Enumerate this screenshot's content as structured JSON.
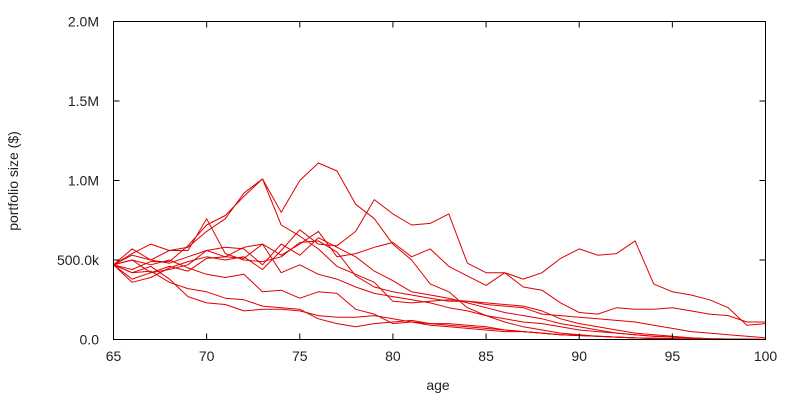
{
  "chart_data": {
    "type": "line",
    "title": "",
    "xlabel": "age",
    "ylabel": "portfolio size ($)",
    "xlim": [
      65,
      100
    ],
    "ylim": [
      0,
      2000000
    ],
    "x_ticks": [
      65,
      70,
      75,
      80,
      85,
      90,
      95,
      100
    ],
    "x_tick_labels": [
      "65",
      "70",
      "75",
      "80",
      "85",
      "90",
      "95",
      "100"
    ],
    "y_ticks": [
      0,
      500000,
      1000000,
      1500000,
      2000000
    ],
    "y_tick_labels": [
      "0.0",
      "500.0k",
      "1.0M",
      "1.5M",
      "2.0M"
    ],
    "grid": false,
    "legend": "none",
    "line_color": "#e00000",
    "x": [
      65,
      66,
      67,
      68,
      69,
      70,
      71,
      72,
      73,
      74,
      75,
      76,
      77,
      78,
      79,
      80,
      81,
      82,
      83,
      84,
      85,
      86,
      87,
      88,
      89,
      90,
      91,
      92,
      93,
      94,
      95,
      96,
      97,
      98,
      99,
      100
    ],
    "series": [
      {
        "values": [
          470000,
          530000,
          500000,
          480000,
          520000,
          560000,
          520000,
          580000,
          600000,
          530000,
          600000,
          680000,
          520000,
          540000,
          580000,
          610000,
          520000,
          570000,
          460000,
          400000,
          340000,
          420000,
          330000,
          310000,
          230000,
          170000,
          160000,
          200000,
          190000,
          190000,
          200000,
          180000,
          160000,
          150000,
          110000,
          110000
        ]
      },
      {
        "values": [
          470000,
          360000,
          390000,
          450000,
          490000,
          520000,
          500000,
          520000,
          440000,
          560000,
          690000,
          600000,
          590000,
          680000,
          880000,
          790000,
          720000,
          730000,
          790000,
          480000,
          420000,
          420000,
          380000,
          420000,
          510000,
          570000,
          530000,
          540000,
          620000,
          350000,
          300000,
          280000,
          250000,
          200000,
          90000,
          100000
        ]
      },
      {
        "values": [
          470000,
          500000,
          420000,
          440000,
          470000,
          560000,
          580000,
          570000,
          470000,
          600000,
          530000,
          640000,
          580000,
          520000,
          430000,
          370000,
          300000,
          280000,
          260000,
          230000,
          200000,
          170000,
          150000,
          130000,
          100000,
          80000,
          60000,
          40000,
          30000,
          20000,
          15000,
          10000,
          5000,
          3000,
          1000,
          0
        ]
      },
      {
        "values": [
          470000,
          570000,
          500000,
          560000,
          560000,
          760000,
          540000,
          500000,
          490000,
          520000,
          610000,
          620000,
          550000,
          400000,
          330000,
          300000,
          280000,
          260000,
          240000,
          240000,
          220000,
          210000,
          200000,
          160000,
          150000,
          140000,
          130000,
          120000,
          110000,
          90000,
          70000,
          50000,
          40000,
          30000,
          20000,
          10000
        ]
      },
      {
        "values": [
          470000,
          540000,
          600000,
          560000,
          580000,
          680000,
          760000,
          920000,
          1010000,
          800000,
          1000000,
          1110000,
          1060000,
          850000,
          760000,
          600000,
          500000,
          350000,
          300000,
          200000,
          150000,
          110000,
          80000,
          60000,
          40000,
          30000,
          20000,
          15000,
          10000,
          5000,
          3000,
          2000,
          1000,
          0,
          0,
          0
        ]
      },
      {
        "values": [
          470000,
          440000,
          490000,
          490000,
          590000,
          720000,
          780000,
          900000,
          1010000,
          720000,
          650000,
          570000,
          460000,
          410000,
          360000,
          240000,
          230000,
          240000,
          250000,
          240000,
          230000,
          220000,
          210000,
          180000,
          130000,
          100000,
          80000,
          60000,
          40000,
          30000,
          20000,
          10000,
          5000,
          3000,
          1000,
          0
        ]
      },
      {
        "values": [
          470000,
          380000,
          420000,
          460000,
          430000,
          510000,
          520000,
          510000,
          600000,
          420000,
          470000,
          410000,
          380000,
          330000,
          290000,
          270000,
          250000,
          230000,
          200000,
          180000,
          150000,
          130000,
          110000,
          100000,
          80000,
          60000,
          50000,
          40000,
          30000,
          20000,
          15000,
          10000,
          5000,
          3000,
          2000,
          1000
        ]
      },
      {
        "values": [
          470000,
          420000,
          460000,
          380000,
          270000,
          230000,
          220000,
          180000,
          190000,
          190000,
          180000,
          150000,
          140000,
          140000,
          150000,
          130000,
          110000,
          100000,
          90000,
          80000,
          70000,
          60000,
          50000,
          40000,
          30000,
          25000,
          20000,
          15000,
          10000,
          8000,
          5000,
          3000,
          2000,
          1000,
          500,
          0
        ]
      },
      {
        "values": [
          470000,
          420000,
          430000,
          360000,
          320000,
          300000,
          260000,
          250000,
          210000,
          200000,
          190000,
          130000,
          100000,
          80000,
          100000,
          110000,
          120000,
          100000,
          100000,
          90000,
          80000,
          60000,
          50000,
          40000,
          30000,
          25000,
          20000,
          15000,
          10000,
          8000,
          5000,
          3000,
          2000,
          1000,
          500,
          0
        ]
      },
      {
        "values": [
          470000,
          500000,
          470000,
          500000,
          450000,
          410000,
          390000,
          410000,
          300000,
          310000,
          260000,
          300000,
          290000,
          190000,
          160000,
          100000,
          110000,
          90000,
          80000,
          70000,
          60000,
          50000,
          50000,
          40000,
          30000,
          25000,
          20000,
          15000,
          10000,
          8000,
          5000,
          3000,
          2000,
          1000,
          500,
          0
        ]
      }
    ]
  }
}
